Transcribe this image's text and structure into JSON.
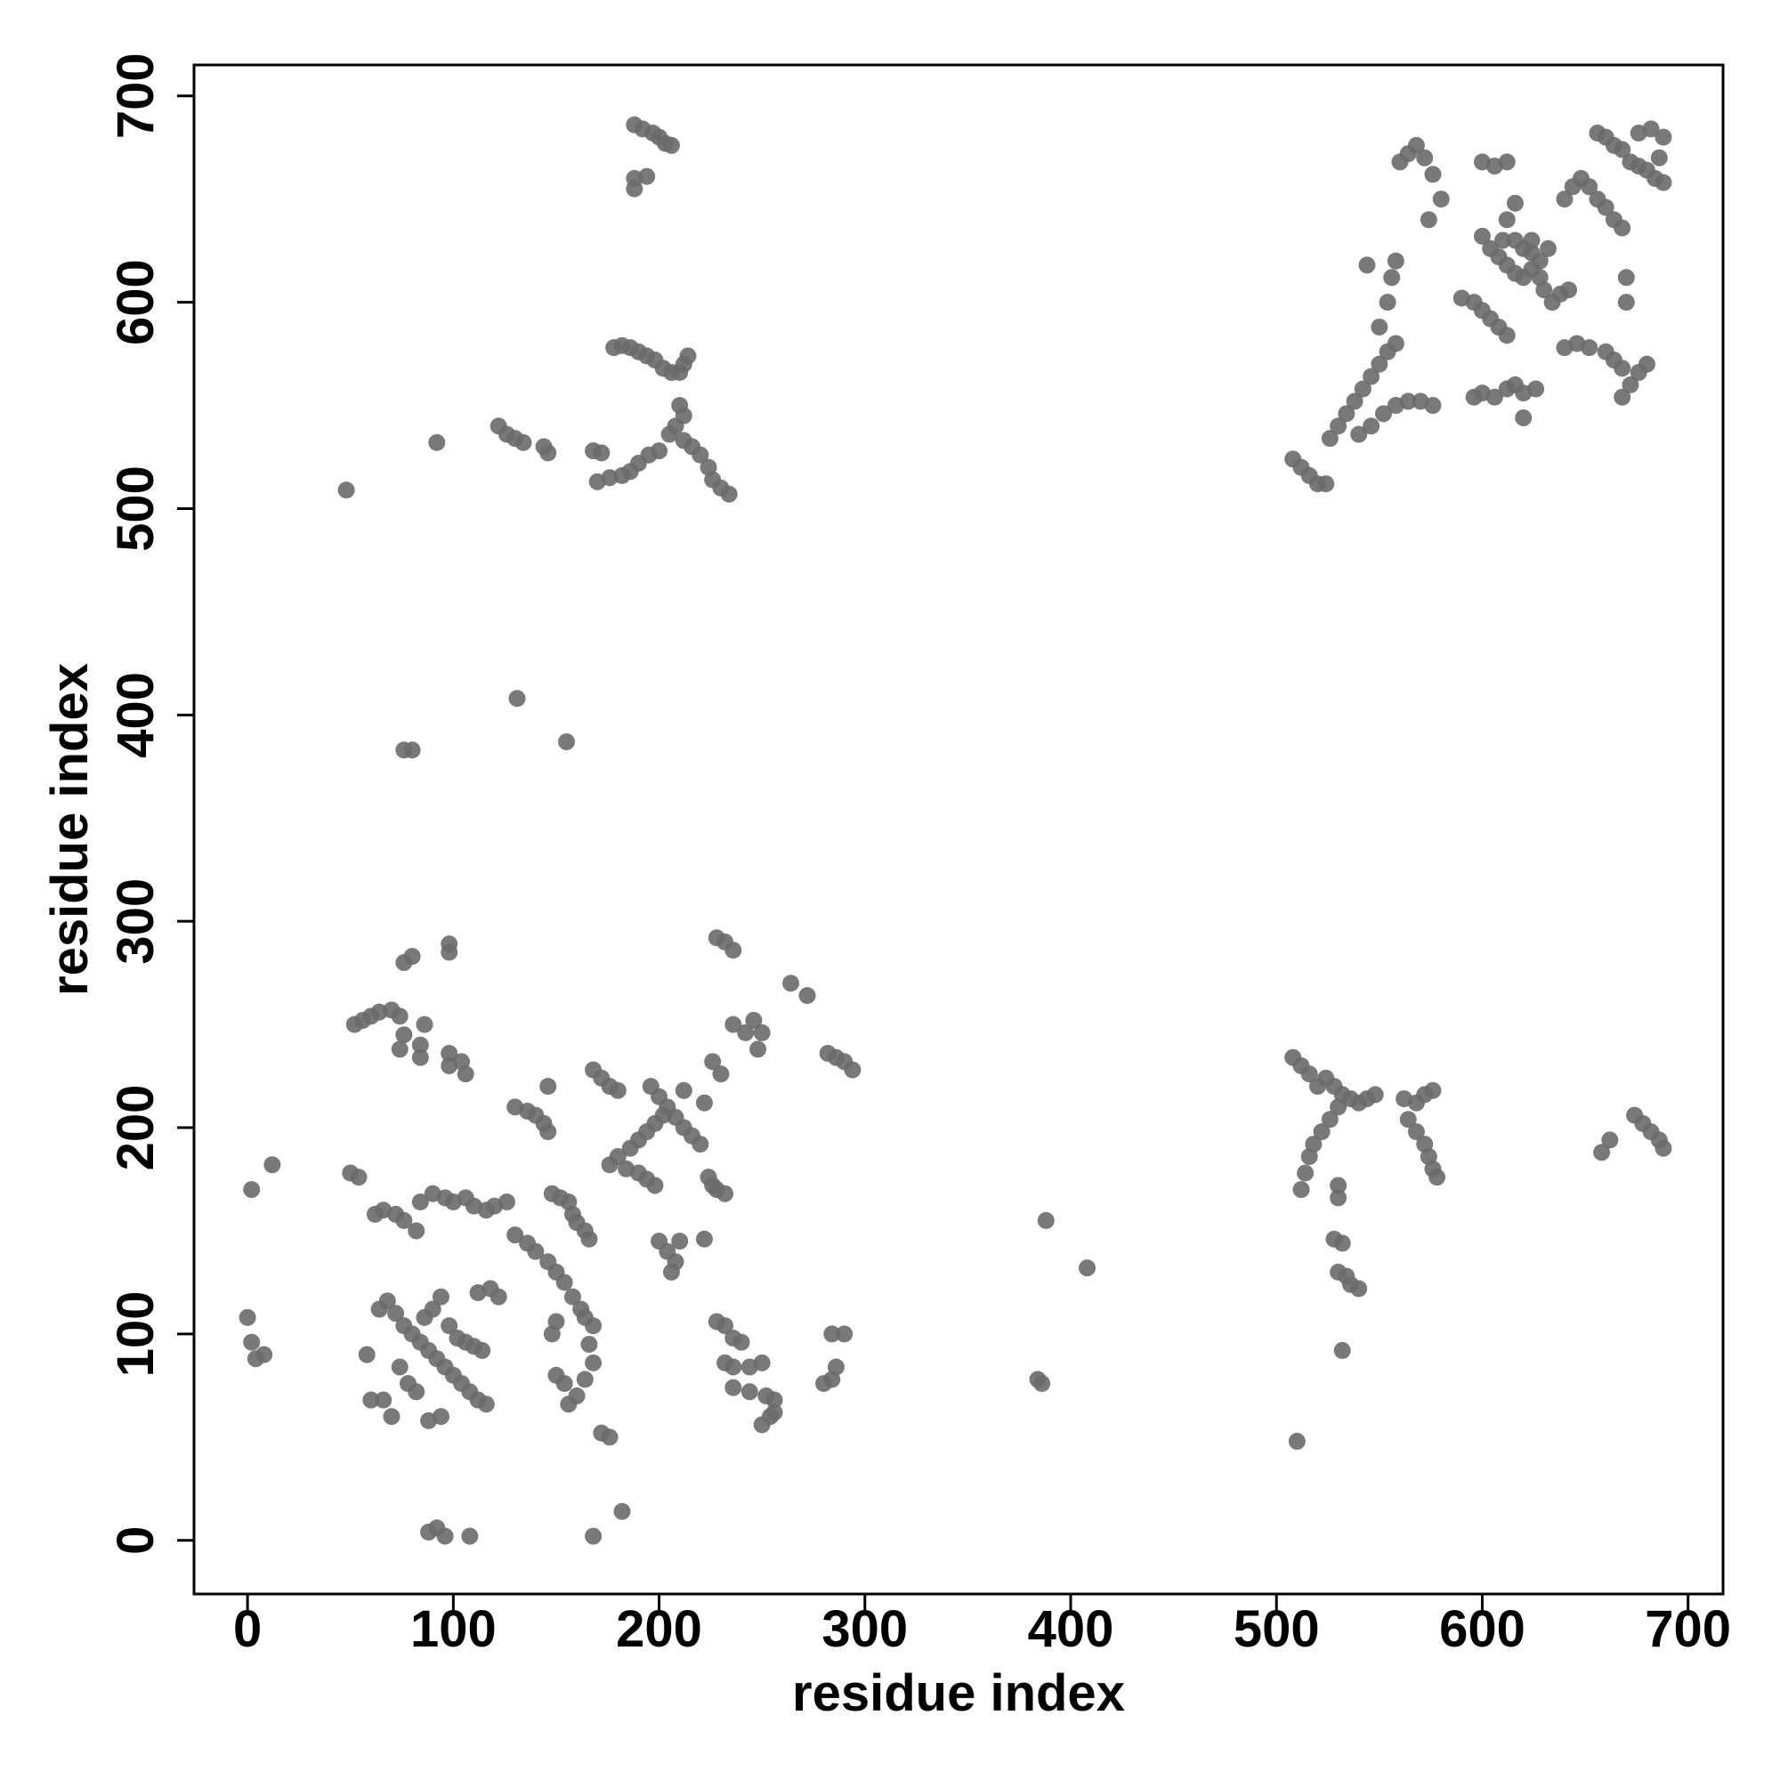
{
  "chart_data": {
    "type": "scatter",
    "x_label": "residue index",
    "y_label": "residue index",
    "xlim": [
      -26,
      717
    ],
    "ylim": [
      -26,
      715
    ],
    "xticks": [
      0,
      100,
      200,
      300,
      400,
      500,
      600,
      700
    ],
    "yticks": [
      0,
      100,
      200,
      300,
      400,
      500,
      600,
      700
    ],
    "color": "#6a6a6a",
    "x": [
      188,
      192,
      197,
      200,
      203,
      206,
      188,
      188,
      194,
      178,
      182,
      186,
      190,
      194,
      198,
      202,
      206,
      210,
      212,
      214,
      210,
      212,
      208,
      205,
      212,
      216,
      220,
      224,
      226,
      230,
      234,
      200,
      195,
      190,
      186,
      182,
      176,
      170,
      168,
      172,
      146,
      144,
      122,
      126,
      130,
      134,
      92,
      48,
      131,
      155,
      76,
      80,
      52,
      56,
      60,
      64,
      70,
      74,
      76,
      74,
      86,
      84,
      84,
      98,
      104,
      106,
      98,
      76,
      80,
      98,
      98,
      130,
      136,
      140,
      144,
      146,
      146,
      168,
      172,
      176,
      180,
      196,
      200,
      204,
      208,
      212,
      216,
      220,
      212,
      222,
      186,
      190,
      194,
      198,
      202,
      176,
      180,
      184,
      190,
      194,
      198,
      226,
      230,
      236,
      242,
      246,
      250,
      248,
      228,
      232,
      236,
      264,
      272,
      282,
      286,
      290,
      294,
      224,
      226,
      228,
      232,
      200,
      204,
      208,
      206,
      210,
      222,
      148,
      152,
      156,
      158,
      160,
      164,
      166,
      130,
      136,
      140,
      146,
      150,
      154,
      158,
      162,
      164,
      168,
      166,
      168,
      164,
      160,
      156,
      150,
      154,
      148,
      150,
      62,
      66,
      72,
      76,
      82,
      84,
      90,
      96,
      100,
      106,
      110,
      116,
      120,
      126,
      64,
      68,
      72,
      76,
      80,
      84,
      88,
      92,
      96,
      100,
      104,
      108,
      112,
      116,
      86,
      90,
      94,
      98,
      102,
      106,
      110,
      114,
      58,
      60,
      66,
      70,
      74,
      78,
      82,
      88,
      94,
      118,
      122,
      112,
      0,
      2,
      4,
      8,
      12,
      2,
      50,
      54,
      228,
      232,
      236,
      240,
      232,
      236,
      244,
      250,
      236,
      244,
      252,
      256,
      250,
      254,
      256,
      284,
      290,
      280,
      284,
      286,
      172,
      176,
      168,
      182,
      88,
      92,
      96,
      108,
      384,
      386,
      388,
      408,
      508,
      512,
      516,
      520,
      524,
      528,
      532,
      536,
      540,
      544,
      548,
      530,
      526,
      522,
      518,
      516,
      514,
      512,
      530,
      530,
      528,
      532,
      530,
      534,
      536,
      540,
      532,
      510,
      562,
      568,
      572,
      576,
      564,
      568,
      572,
      574,
      576,
      578,
      658,
      662,
      674,
      678,
      682,
      686,
      688,
      508,
      512,
      516,
      520,
      524,
      526,
      530,
      534,
      538,
      542,
      546,
      550,
      554,
      558,
      540,
      546,
      552,
      558,
      564,
      570,
      576,
      550,
      554,
      556,
      558,
      544,
      560,
      564,
      568,
      572,
      576,
      580,
      574,
      600,
      606,
      612,
      600,
      604,
      608,
      612,
      616,
      620,
      624,
      628,
      632,
      612,
      616,
      620,
      624,
      630,
      634,
      638,
      642,
      596,
      600,
      604,
      608,
      612,
      590,
      596,
      600,
      606,
      612,
      616,
      620,
      626,
      620,
      640,
      646,
      652,
      660,
      664,
      668,
      672,
      676,
      680,
      668,
      670,
      670,
      640,
      644,
      648,
      652,
      656,
      660,
      664,
      668,
      656,
      660,
      664,
      668,
      672,
      676,
      680,
      684,
      688,
      676,
      682,
      688,
      686,
      610,
      616,
      624,
      628
    ],
    "values": [
      686,
      684,
      682,
      680,
      677,
      676,
      655,
      660,
      661,
      578,
      579,
      578,
      576,
      574,
      572,
      568,
      566,
      566,
      570,
      574,
      550,
      545,
      540,
      536,
      533,
      530,
      526,
      520,
      514,
      510,
      507,
      528,
      526,
      522,
      518,
      516,
      515,
      513,
      528,
      527,
      527,
      530,
      540,
      536,
      534,
      532,
      532,
      509,
      408,
      387,
      383,
      383,
      250,
      252,
      254,
      256,
      257,
      254,
      245,
      238,
      250,
      240,
      234,
      236,
      232,
      226,
      230,
      280,
      283,
      289,
      285,
      210,
      208,
      206,
      202,
      198,
      220,
      228,
      224,
      220,
      218,
      220,
      215,
      210,
      205,
      200,
      196,
      192,
      218,
      212,
      190,
      194,
      198,
      202,
      206,
      182,
      186,
      180,
      178,
      175,
      172,
      232,
      226,
      250,
      246,
      252,
      246,
      238,
      292,
      290,
      286,
      270,
      264,
      236,
      234,
      232,
      228,
      176,
      172,
      170,
      168,
      145,
      140,
      135,
      130,
      145,
      146,
      168,
      166,
      164,
      158,
      154,
      150,
      146,
      148,
      144,
      140,
      135,
      130,
      125,
      118,
      112,
      108,
      104,
      95,
      86,
      78,
      70,
      66,
      80,
      76,
      100,
      106,
      158,
      160,
      158,
      155,
      150,
      164,
      168,
      166,
      164,
      166,
      162,
      160,
      162,
      164,
      112,
      116,
      110,
      104,
      100,
      96,
      92,
      88,
      84,
      80,
      76,
      72,
      68,
      66,
      108,
      112,
      118,
      104,
      98,
      96,
      94,
      92,
      90,
      68,
      68,
      60,
      84,
      76,
      72,
      58,
      60,
      122,
      118,
      120,
      108,
      96,
      88,
      90,
      182,
      170,
      178,
      176,
      106,
      104,
      98,
      96,
      86,
      84,
      84,
      86,
      74,
      72,
      70,
      68,
      56,
      60,
      62,
      100,
      100,
      76,
      78,
      84,
      52,
      50,
      2,
      14,
      4,
      6,
      2,
      2,
      78,
      76,
      155,
      132,
      234,
      230,
      226,
      220,
      224,
      220,
      216,
      214,
      212,
      214,
      216,
      210,
      204,
      198,
      192,
      186,
      178,
      170,
      172,
      166,
      146,
      144,
      130,
      128,
      124,
      122,
      92,
      48,
      214,
      212,
      216,
      218,
      204,
      198,
      192,
      186,
      180,
      176,
      188,
      194,
      206,
      202,
      198,
      194,
      190,
      524,
      520,
      516,
      512,
      512,
      534,
      540,
      546,
      552,
      558,
      564,
      570,
      576,
      580,
      536,
      540,
      546,
      550,
      552,
      552,
      550,
      588,
      600,
      612,
      620,
      618,
      668,
      672,
      676,
      670,
      662,
      650,
      640,
      668,
      666,
      668,
      632,
      626,
      622,
      618,
      614,
      612,
      616,
      620,
      626,
      640,
      630,
      626,
      630,
      606,
      600,
      604,
      606,
      600,
      596,
      592,
      588,
      584,
      602,
      554,
      556,
      554,
      558,
      560,
      556,
      558,
      544,
      578,
      580,
      578,
      576,
      572,
      568,
      560,
      566,
      570,
      554,
      600,
      612,
      650,
      656,
      660,
      656,
      650,
      646,
      640,
      636,
      682,
      680,
      676,
      674,
      668,
      666,
      664,
      660,
      658,
      682,
      684,
      680,
      670,
      630,
      648,
      624,
      612
    ]
  }
}
